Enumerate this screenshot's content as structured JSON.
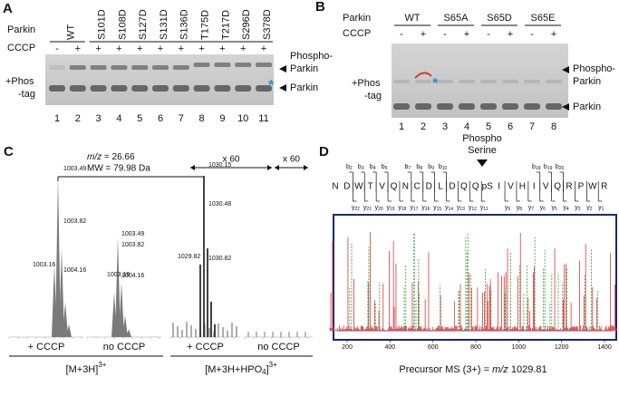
{
  "panel_a": {
    "label": "A",
    "row_parkin": "Parkin",
    "row_cccp": "CCCP",
    "lanes": [
      "WT",
      "S101D",
      "S108D",
      "S127D",
      "S131D",
      "S136D",
      "T175D",
      "T217D",
      "S296D",
      "S378D"
    ],
    "cccp": [
      "-",
      "+",
      "+",
      "+",
      "+",
      "+",
      "+",
      "+",
      "+",
      "+",
      "+"
    ],
    "lane_numbers": [
      "1",
      "2",
      "3",
      "4",
      "5",
      "6",
      "7",
      "8",
      "9",
      "10",
      "11"
    ],
    "left_label": [
      "+Phos",
      "-tag"
    ],
    "phospho_label": [
      "Phospho-",
      "Parkin"
    ],
    "parkin_label": "Parkin",
    "asterisk": "*"
  },
  "panel_b": {
    "label": "B",
    "row_parkin": "Parkin",
    "row_cccp": "CCCP",
    "groups": [
      "WT",
      "S65A",
      "S65D",
      "S65E"
    ],
    "cccp": [
      "-",
      "+",
      "-",
      "+",
      "-",
      "+",
      "-",
      "+"
    ],
    "lane_numbers": [
      "1",
      "2",
      "3",
      "4",
      "5",
      "6",
      "7",
      "8"
    ],
    "left_label": [
      "+Phos",
      "-tag"
    ],
    "phospho_label": [
      "Phospho-",
      "Parkin"
    ],
    "parkin_label": "Parkin",
    "asterisk": "*"
  },
  "panel_c": {
    "label": "C",
    "mz_prefix": "m/z",
    "mz_value": " = 26.66",
    "mw": "MW = 79.98 Da",
    "zoom": [
      "x 60",
      "x 60"
    ],
    "spectra": [
      {
        "condition": "+ CCCP",
        "peaks": [
          "1003.49",
          "1003.82",
          "1003.16",
          "1004.16"
        ]
      },
      {
        "condition": "no CCCP",
        "peaks": [
          "1003.49",
          "1003.82",
          "1003.16",
          "1004.16"
        ]
      },
      {
        "condition": "+ CCCP",
        "peaks": [
          "1030.15",
          "1030.48",
          "1029.82",
          "1030.82"
        ]
      },
      {
        "condition": "no CCCP",
        "peaks": []
      }
    ],
    "groups": [
      {
        "parts": [
          "[M+3H]"
        ],
        "sub": "",
        "tail": "",
        "sup": "3+"
      },
      {
        "parts": [
          "[M+3H+HPO"
        ],
        "sub": "4",
        "tail": "]",
        "sup": "3+"
      }
    ]
  },
  "panel_d": {
    "label": "D",
    "site": [
      "Phospho",
      "Serine"
    ],
    "sequence": [
      "N",
      "D",
      "W",
      "T",
      "V",
      "Q",
      "N",
      "C",
      "D",
      "L",
      "D",
      "Q",
      "Q",
      "pS",
      "I",
      "V",
      "H",
      "I",
      "V",
      "Q",
      "R",
      "P",
      "W",
      "R"
    ],
    "b_ions": [
      [
        "b",
        "2"
      ],
      [
        "b",
        "3"
      ],
      [
        "b",
        "4"
      ],
      [
        "b",
        "5"
      ],
      [
        "b",
        "7"
      ],
      [
        "b",
        "8"
      ],
      [
        "b",
        "9"
      ],
      [
        "b",
        "10"
      ],
      [
        "b",
        "18"
      ],
      [
        "b",
        "19"
      ],
      [
        "b",
        "20"
      ]
    ],
    "y_ions": [
      [
        "y",
        "22"
      ],
      [
        "y",
        "21"
      ],
      [
        "y",
        "20"
      ],
      [
        "y",
        "19"
      ],
      [
        "y",
        "18"
      ],
      [
        "y",
        "17"
      ],
      [
        "y",
        "16"
      ],
      [
        "y",
        "15"
      ],
      [
        "y",
        "14"
      ],
      [
        "y",
        "13"
      ],
      [
        "y",
        "12"
      ],
      [
        "y",
        "11"
      ],
      [
        "y",
        "9"
      ],
      [
        "y",
        "8"
      ],
      [
        "y",
        "7"
      ],
      [
        "y",
        "6"
      ],
      [
        "y",
        "5"
      ],
      [
        "y",
        "4"
      ],
      [
        "y",
        "3"
      ],
      [
        "y",
        "2"
      ],
      [
        "y",
        "1"
      ]
    ],
    "x_ticks": [
      "200",
      "400",
      "600",
      "800",
      "1000",
      "1200",
      "1400"
    ],
    "footer": "Precursor MS (3+) = ",
    "footer_mz": "m/z",
    "footer_value": " 1029.81"
  }
}
